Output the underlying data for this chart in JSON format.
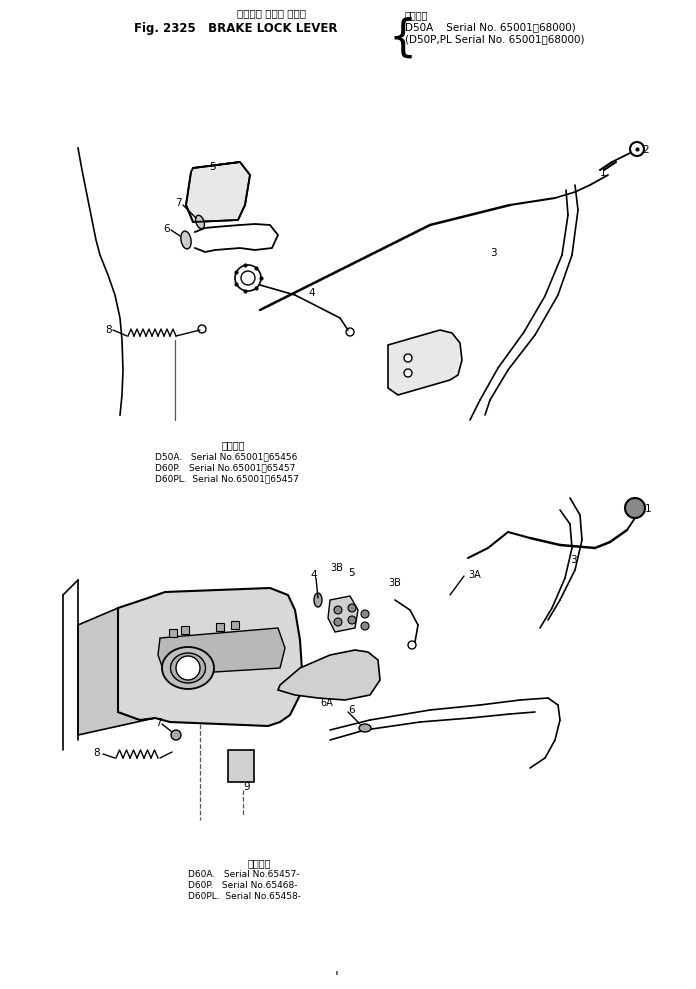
{
  "title_jp": "ブレーキ ロック レバー",
  "title_en": "Fig. 2325   BRAKE LOCK LEVER",
  "serial_header": "通用号等",
  "serial1": "D50A    Serial No. 65001～68000)",
  "serial2": "(D50P,PL Serial No. 65001～68000)",
  "sub1_header": "通用号等",
  "sub1_l1": "D50A.   Serial No.65001～65456",
  "sub1_l2": "D60P.   Serial No.65001～65457",
  "sub1_l3": "D60PL.  Serial No.65001～65457",
  "sub2_header": "通用号等",
  "sub2_l1": "D60A.   Serial No.65457-",
  "sub2_l2": "D60P.   Serial No.65468-",
  "sub2_l3": "D60PL.  Serial No.65458-",
  "bg": "#ffffff",
  "lc": "#000000",
  "figsize": [
    6.96,
    9.89
  ],
  "dpi": 100
}
